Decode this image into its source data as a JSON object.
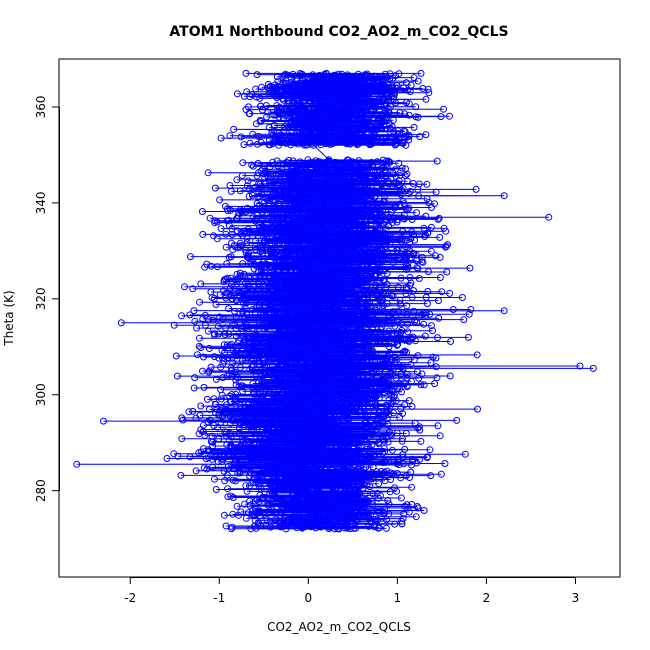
{
  "chart_data": {
    "type": "scatter",
    "title": "ATOM1 Northbound CO2_AO2_m_CO2_QCLS",
    "xlabel": "CO2_AO2_m_CO2_QCLS",
    "ylabel": "Theta (K)",
    "xlim": [
      -2.8,
      3.5
    ],
    "ylim": [
      262,
      370
    ],
    "x_ticks": [
      -2,
      -1,
      0,
      1,
      2,
      3
    ],
    "y_ticks": [
      280,
      300,
      320,
      340,
      360
    ],
    "x_tick_labels": [
      "-2",
      "-1",
      "0",
      "1",
      "2",
      "3"
    ],
    "y_tick_labels": [
      "280",
      "300",
      "320",
      "340",
      "360"
    ],
    "grid": false,
    "legend": "none",
    "marker": "open-circle",
    "connected": true,
    "series_color": "#0000ff",
    "clusters": [
      {
        "theta_range": [
          272,
          283
        ],
        "x_center": 0.1,
        "x_spread": 0.45
      },
      {
        "theta_range": [
          283,
          299
        ],
        "x_center": 0.0,
        "x_spread": 0.6
      },
      {
        "theta_range": [
          299,
          325
        ],
        "x_center": 0.1,
        "x_spread": 0.6
      },
      {
        "theta_range": [
          325,
          349
        ],
        "x_center": 0.2,
        "x_spread": 0.55
      },
      {
        "theta_range": [
          352,
          367
        ],
        "x_center": 0.3,
        "x_spread": 0.45
      }
    ],
    "notable_points": [
      {
        "x": -2.6,
        "y": 285.5
      },
      {
        "x": 3.2,
        "y": 305.5
      },
      {
        "x": 3.05,
        "y": 306
      },
      {
        "x": 2.7,
        "y": 337
      },
      {
        "x": 2.2,
        "y": 317.5
      },
      {
        "x": -2.1,
        "y": 315
      },
      {
        "x": 1.9,
        "y": 297
      },
      {
        "x": -0.7,
        "y": 367
      },
      {
        "x": 0.95,
        "y": 366
      },
      {
        "x": -0.98,
        "y": 353.5
      },
      {
        "x": -2.3,
        "y": 294.5
      },
      {
        "x": 2.2,
        "y": 341.5
      }
    ]
  }
}
